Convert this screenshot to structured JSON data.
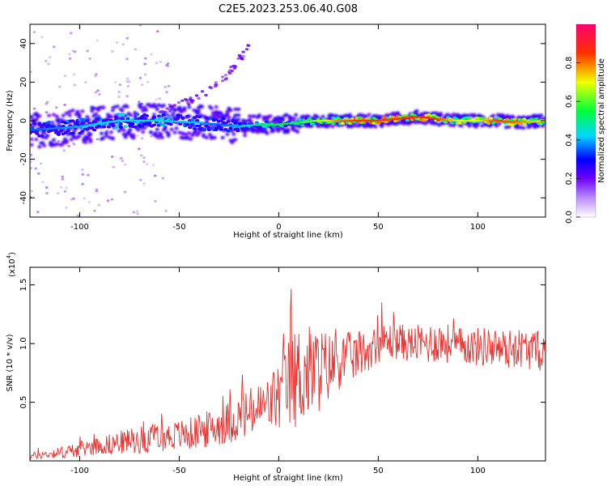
{
  "title": "C2E5.2023.253.06.40.G08",
  "chart_data": [
    {
      "type": "heatmap",
      "xlabel": "Height of straight line (km)",
      "ylabel": "Frequency (Hz)",
      "xlim": [
        -125,
        134
      ],
      "ylim": [
        -50,
        50
      ],
      "xticks": [
        -100,
        -50,
        0,
        50,
        100
      ],
      "yticks": [
        -40,
        -20,
        0,
        20,
        40
      ],
      "grid": false,
      "colorbar": {
        "label": "Normalized spectral amplitude",
        "range": [
          0,
          1
        ],
        "ticks": [
          "0.0",
          "0.2",
          "0.4",
          "0.6",
          "0.8"
        ],
        "colors": [
          "#ffffff",
          "#7d00ff",
          "#0000ff",
          "#00e0ff",
          "#00ff00",
          "#ffff00",
          "#ff8000",
          "#ff0000",
          "#ff0080"
        ]
      },
      "ridge": {
        "x": [
          -125,
          -100,
          -80,
          -60,
          -40,
          -30,
          -20,
          -10,
          0,
          10,
          20,
          30,
          40,
          50,
          60,
          70,
          80,
          90,
          100,
          110,
          120,
          134
        ],
        "freq": [
          -5,
          -3,
          0,
          0,
          -1,
          -2,
          -3,
          -2,
          -2,
          -1,
          0,
          0,
          0,
          0,
          1,
          2,
          1,
          0,
          0,
          0,
          -1,
          0
        ],
        "amplitude": [
          0.35,
          0.4,
          0.45,
          0.45,
          0.4,
          0.35,
          0.4,
          0.5,
          0.55,
          0.55,
          0.65,
          0.8,
          0.85,
          0.85,
          0.85,
          0.9,
          0.85,
          0.7,
          0.7,
          0.85,
          0.8,
          0.7
        ]
      },
      "faint_streak": {
        "x": [
          -60,
          -50,
          -40,
          -32,
          -26,
          -20,
          -15
        ],
        "freq": [
          5,
          8,
          12,
          18,
          24,
          32,
          38
        ]
      }
    },
    {
      "type": "line",
      "xlabel": "Height of straight line (km)",
      "ylabel": "SNR (10 * v/v)",
      "y_multiplier": "(x10",
      "y_multiplier_exp": "4",
      "y_multiplier_close": ")",
      "xlim": [
        -125,
        134
      ],
      "ylim": [
        0,
        1.65
      ],
      "xticks": [
        -100,
        -50,
        0,
        50,
        100
      ],
      "yticks": [
        0.5,
        1.0,
        1.5
      ],
      "ytick_labels": [
        "0.5",
        "1.0",
        "1.5"
      ],
      "grid": false,
      "series": [
        {
          "color": "#e8312e",
          "x": [
            -125,
            -115,
            -105,
            -95,
            -85,
            -75,
            -65,
            -55,
            -45,
            -35,
            -25,
            -15,
            -5,
            0,
            5,
            10,
            15,
            20,
            25,
            30,
            35,
            40,
            45,
            50,
            55,
            60,
            65,
            70,
            75,
            80,
            85,
            90,
            95,
            100,
            105,
            110,
            115,
            120,
            125,
            134
          ],
          "mean": [
            0.04,
            0.06,
            0.08,
            0.12,
            0.14,
            0.17,
            0.19,
            0.21,
            0.23,
            0.27,
            0.33,
            0.4,
            0.48,
            0.55,
            0.65,
            0.72,
            0.75,
            0.78,
            0.8,
            0.85,
            0.88,
            0.9,
            0.95,
            1.0,
            1.02,
            1.02,
            1.0,
            1.0,
            1.0,
            1.02,
            1.0,
            0.98,
            0.98,
            0.97,
            0.98,
            0.96,
            0.95,
            0.97,
            0.95,
            0.93
          ],
          "amplitude": [
            0.03,
            0.04,
            0.06,
            0.07,
            0.09,
            0.11,
            0.12,
            0.12,
            0.14,
            0.16,
            0.18,
            0.22,
            0.25,
            0.32,
            0.4,
            0.45,
            0.42,
            0.38,
            0.3,
            0.25,
            0.22,
            0.2,
            0.18,
            0.16,
            0.16,
            0.16,
            0.15,
            0.16,
            0.18,
            0.18,
            0.17,
            0.16,
            0.16,
            0.17,
            0.17,
            0.17,
            0.17,
            0.17,
            0.17,
            0.17
          ]
        }
      ]
    }
  ]
}
